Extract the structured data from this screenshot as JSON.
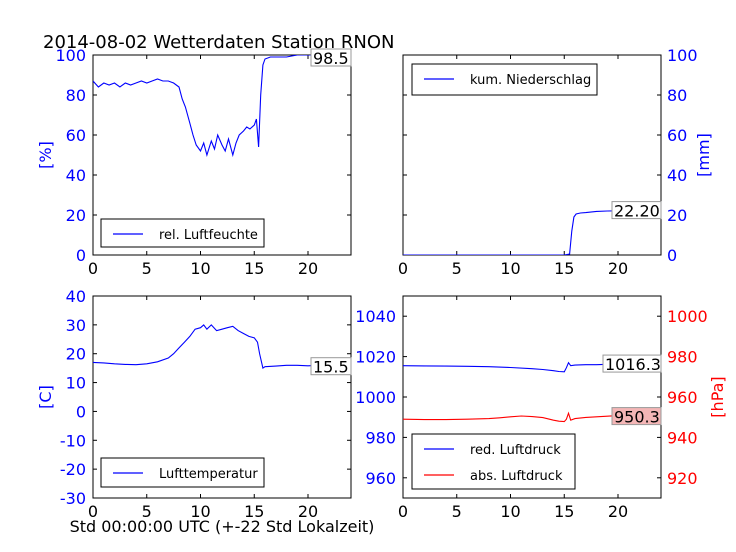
{
  "title": "2014-08-02 Wetterdaten Station RNON",
  "xlabel": "Std 00:00:00 UTC (+-22 Std Lokalzeit)",
  "colors": {
    "blue": "#0000ff",
    "red": "#ff0000",
    "annotation_fill_red": "#f4b6b6"
  },
  "chart_data": [
    {
      "id": "humidity",
      "type": "line",
      "title": "",
      "ylabel": "[%]",
      "ylabel_side": "left",
      "xlim": [
        0,
        24
      ],
      "ylim": [
        0,
        100
      ],
      "xticks": [
        0,
        5,
        10,
        15,
        20
      ],
      "yticks": [
        0,
        20,
        40,
        60,
        80,
        100
      ],
      "legend": "bottom-left",
      "annotation": "98.5",
      "series": [
        {
          "name": "rel. Luftfeuchte",
          "color": "#0000ff",
          "x": [
            0,
            0.5,
            1,
            1.5,
            2,
            2.5,
            3,
            3.5,
            4,
            4.5,
            5,
            5.5,
            6,
            6.5,
            7,
            7.5,
            8,
            8.3,
            8.6,
            9,
            9.3,
            9.6,
            10,
            10.3,
            10.6,
            11,
            11.3,
            11.6,
            12,
            12.3,
            12.6,
            13,
            13.3,
            13.6,
            14,
            14.3,
            14.6,
            15,
            15.2,
            15.4,
            15.6,
            15.8,
            16,
            16.5,
            17,
            18,
            19,
            20,
            21,
            22,
            23,
            24
          ],
          "y": [
            87,
            84,
            86,
            85,
            86,
            84,
            86,
            85,
            86,
            87,
            86,
            87,
            88,
            87,
            87,
            86,
            84,
            78,
            74,
            66,
            60,
            55,
            52,
            56,
            50,
            57,
            53,
            60,
            55,
            52,
            58,
            50,
            56,
            60,
            62,
            64,
            63,
            65,
            68,
            54,
            80,
            95,
            98,
            99,
            99,
            99,
            100,
            100,
            100,
            99.5,
            99,
            98.5
          ]
        }
      ]
    },
    {
      "id": "precip",
      "type": "line",
      "title": "",
      "ylabel": "[mm]",
      "ylabel_side": "right",
      "xlim": [
        0,
        24
      ],
      "ylim": [
        0,
        100
      ],
      "xticks": [
        0,
        5,
        10,
        15,
        20
      ],
      "yticks": [
        0,
        20,
        40,
        60,
        80,
        100
      ],
      "legend": "top-left",
      "annotation": "22.20",
      "series": [
        {
          "name": "kum. Niederschlag",
          "color": "#0000ff",
          "x": [
            0,
            5,
            10,
            15,
            15.5,
            15.7,
            15.9,
            16.1,
            16.5,
            17,
            18,
            19,
            20,
            21,
            22,
            23,
            24
          ],
          "y": [
            0,
            0,
            0,
            0,
            0.5,
            12,
            19,
            20.5,
            21,
            21.2,
            21.8,
            22.0,
            22.1,
            22.2,
            22.2,
            22.2,
            22.2
          ]
        }
      ]
    },
    {
      "id": "temperature",
      "type": "line",
      "title": "",
      "ylabel": "[C]",
      "ylabel_side": "left",
      "xlim": [
        0,
        24
      ],
      "ylim": [
        -30,
        40
      ],
      "xticks": [
        0,
        5,
        10,
        15,
        20
      ],
      "yticks": [
        -30,
        -20,
        -10,
        0,
        10,
        20,
        30,
        40
      ],
      "legend": "bottom-left",
      "annotation": "15.5",
      "series": [
        {
          "name": "Lufttemperatur",
          "color": "#0000ff",
          "x": [
            0,
            1,
            2,
            3,
            4,
            5,
            6,
            7,
            7.5,
            8,
            8.5,
            9,
            9.5,
            10,
            10.3,
            10.6,
            11,
            11.5,
            12,
            12.5,
            13,
            13.5,
            14,
            14.5,
            15,
            15.3,
            15.5,
            15.8,
            16,
            17,
            18,
            19,
            20,
            21,
            22,
            23,
            24
          ],
          "y": [
            17,
            16.8,
            16.5,
            16.3,
            16.2,
            16.5,
            17.2,
            18.5,
            20,
            22,
            24,
            26,
            28.5,
            29,
            30,
            28.5,
            30,
            28,
            28.5,
            29,
            29.5,
            28,
            27,
            26,
            25.5,
            24,
            20,
            15,
            15.5,
            15.7,
            16,
            16,
            15.8,
            16,
            15.9,
            15.6,
            15.5
          ]
        }
      ]
    },
    {
      "id": "pressure",
      "type": "line",
      "title": "",
      "ylabel": "",
      "ylabel2": "[hPa]",
      "xlim": [
        0,
        24
      ],
      "ylim": [
        950,
        1050
      ],
      "ylim2": [
        910,
        1010
      ],
      "xticks": [
        0,
        5,
        10,
        15,
        20
      ],
      "yticks": [
        960,
        980,
        1000,
        1020,
        1040
      ],
      "yticks2": [
        920,
        940,
        960,
        980,
        1000
      ],
      "legend": "bottom-left",
      "annotation": "1016.3",
      "annotation2": "950.3",
      "series": [
        {
          "name": "red. Luftdruck",
          "color": "#0000ff",
          "axis": "left",
          "x": [
            0,
            2,
            4,
            6,
            8,
            10,
            12,
            13,
            14,
            14.5,
            15,
            15.2,
            15.4,
            15.6,
            16,
            17,
            18,
            19,
            20,
            21,
            22,
            23,
            24
          ],
          "y": [
            1015.5,
            1015.4,
            1015.3,
            1015.2,
            1015.0,
            1014.6,
            1014.0,
            1013.6,
            1013.0,
            1012.6,
            1012.5,
            1014.5,
            1017.0,
            1015.5,
            1015.8,
            1016.0,
            1016.0,
            1016.2,
            1016.4,
            1016.5,
            1016.3,
            1016.4,
            1016.3
          ]
        },
        {
          "name": "abs. Luftdruck",
          "color": "#ff0000",
          "axis": "right",
          "x": [
            0,
            2,
            4,
            6,
            8,
            9,
            10,
            11,
            12,
            13,
            14,
            14.5,
            15,
            15.2,
            15.4,
            15.6,
            16,
            17,
            18,
            19,
            20,
            21,
            22,
            23,
            24
          ],
          "y": [
            949.0,
            948.8,
            948.8,
            949.0,
            949.3,
            949.7,
            950.2,
            950.6,
            950.3,
            949.8,
            948.5,
            948.0,
            947.8,
            949.0,
            952.0,
            948.5,
            949.3,
            949.9,
            950.2,
            950.5,
            950.8,
            950.4,
            950.6,
            950.5,
            950.3
          ]
        }
      ]
    }
  ]
}
